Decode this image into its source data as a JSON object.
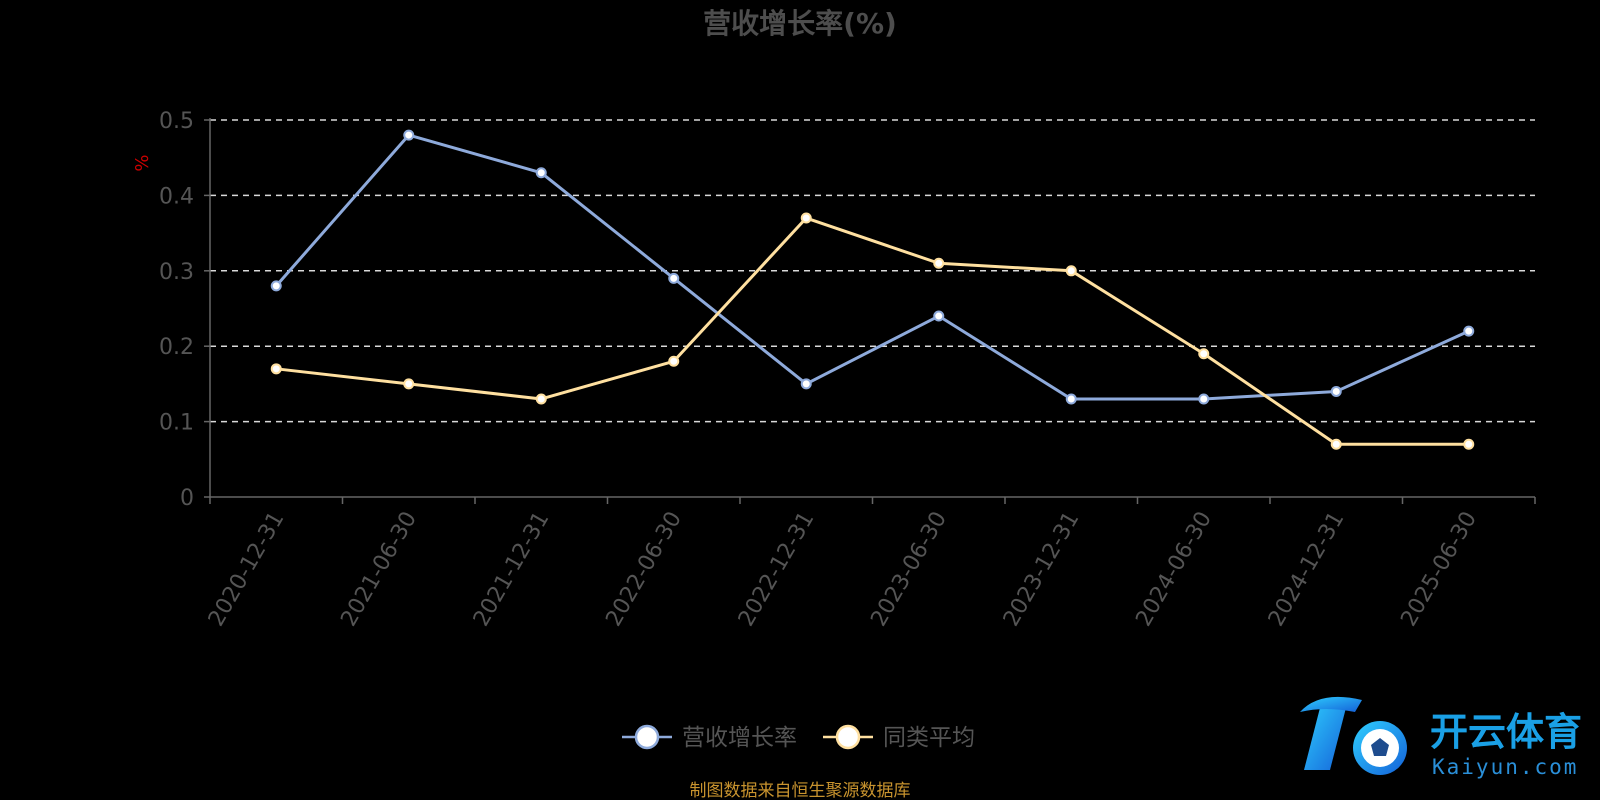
{
  "chart_data": {
    "type": "line",
    "title": "营收增长率(%)",
    "ylabel": "%",
    "ylim": [
      0,
      0.5
    ],
    "yticks": [
      "0",
      "0.1",
      "0.2",
      "0.3",
      "0.4",
      "0.5"
    ],
    "categories": [
      "2020-12-31",
      "2021-06-30",
      "2021-12-31",
      "2022-06-30",
      "2022-12-31",
      "2023-06-30",
      "2023-12-31",
      "2024-06-30",
      "2024-12-31",
      "2025-06-30"
    ],
    "grid": true,
    "legend_position": "bottom-center",
    "series": [
      {
        "name": "营收增长率",
        "color": "#8eaadb",
        "values": [
          0.28,
          0.48,
          0.43,
          0.29,
          0.15,
          0.24,
          0.13,
          0.13,
          0.14,
          0.22
        ]
      },
      {
        "name": "同类平均",
        "color": "#ffe0a0",
        "values": [
          0.17,
          0.15,
          0.13,
          0.18,
          0.37,
          0.31,
          0.3,
          0.19,
          0.07,
          0.07
        ]
      }
    ]
  },
  "footer": {
    "source": "制图数据来自恒生聚源数据库"
  },
  "watermark": {
    "brand": "开云体育",
    "domain": "Kaiyun.com"
  }
}
